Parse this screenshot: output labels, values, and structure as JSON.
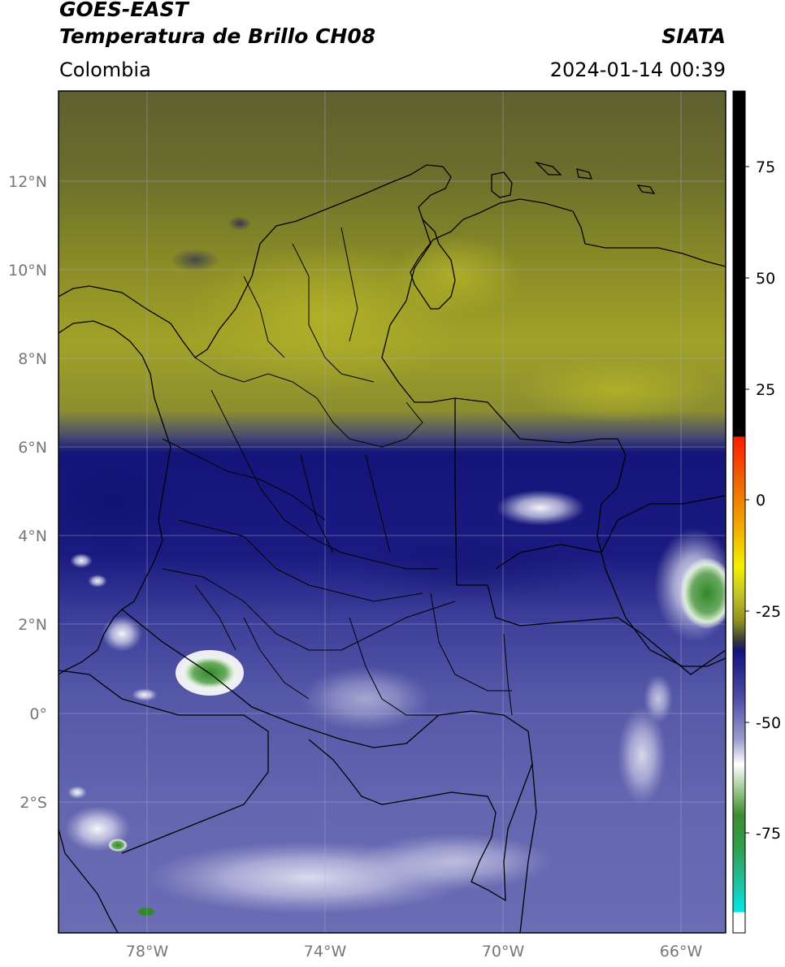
{
  "header": {
    "line1": "GOES-EAST",
    "line2": "Temperatura de Brillo CH08",
    "region": "Colombia",
    "brand": "SIATA",
    "datetime": "2024-01-14 00:39"
  },
  "map": {
    "lon_range": [
      -79.8,
      -64.8
    ],
    "lat_range": [
      -5.2,
      14.2
    ],
    "lat_ticks": [
      {
        "value": 12,
        "label": "12°N"
      },
      {
        "value": 10,
        "label": "10°N"
      },
      {
        "value": 8,
        "label": "8°N"
      },
      {
        "value": 6,
        "label": "6°N"
      },
      {
        "value": 4,
        "label": "4°N"
      },
      {
        "value": 2,
        "label": "2°N"
      },
      {
        "value": 0,
        "label": "0°"
      },
      {
        "value": -2,
        "label": "2°S"
      }
    ],
    "lon_ticks": [
      {
        "value": -78,
        "label": "78°W"
      },
      {
        "value": -74,
        "label": "74°W"
      },
      {
        "value": -70,
        "label": "70°W"
      },
      {
        "value": -66,
        "label": "66°W"
      }
    ],
    "grid": true
  },
  "colorbar": {
    "range": [
      -95,
      90
    ],
    "ticks": [
      {
        "value": 75,
        "label": "75"
      },
      {
        "value": 50,
        "label": "50"
      },
      {
        "value": 25,
        "label": "25"
      },
      {
        "value": 0,
        "label": "0"
      },
      {
        "value": -25,
        "label": "-25"
      },
      {
        "value": -50,
        "label": "-50"
      },
      {
        "value": -75,
        "label": "-75"
      }
    ],
    "colors": {
      "black": "#000000",
      "red": "#e8180a",
      "orange": "#f08a00",
      "yellow": "#f2ec00",
      "olive": "#8e9020",
      "navy": "#1c1c84",
      "lavender": "#b8b8da",
      "white": "#ffffff",
      "green": "#2f8a2a",
      "teal": "#1ab89a",
      "cyan": "#00e8e8"
    }
  }
}
